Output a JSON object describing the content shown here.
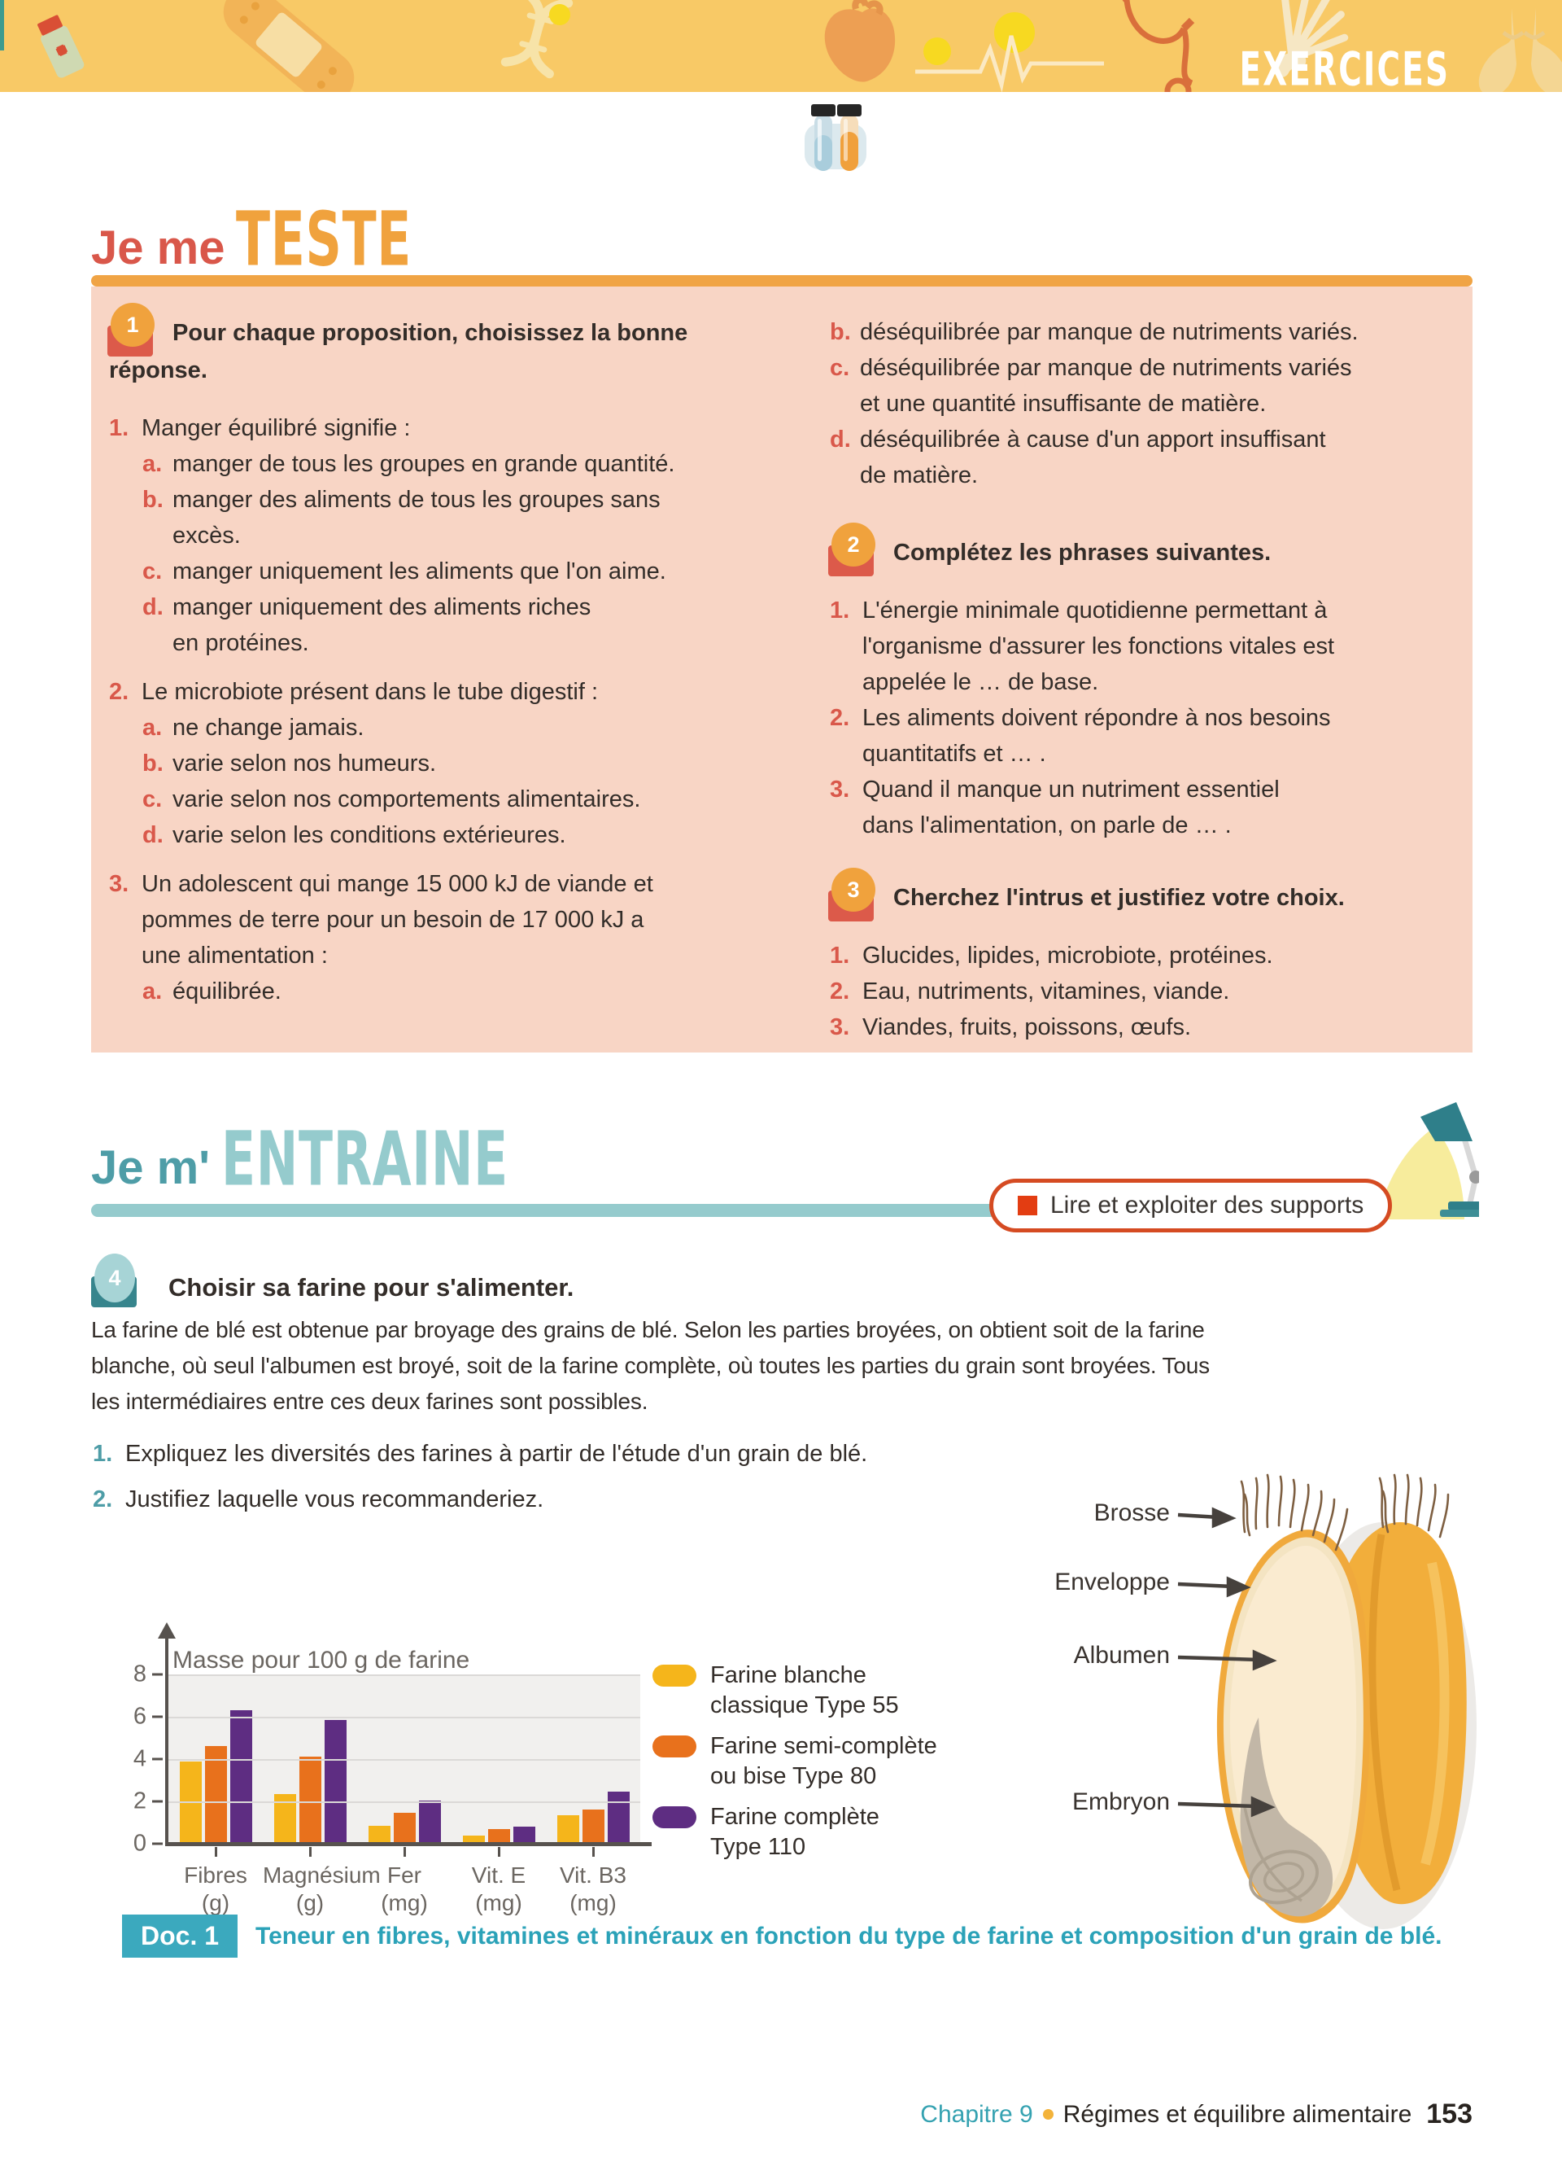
{
  "banner": {
    "title": "EXERCICES"
  },
  "sections": {
    "teste_prefix": "Je me",
    "teste_accent": "TESTE",
    "entraine_prefix": "Je m'",
    "entraine_accent": "ENTRAINE",
    "skill_badge": "Lire et exploiter des supports"
  },
  "quiz": {
    "badge": "1",
    "intro": "Pour chaque proposition, choisissez la bonne\nréponse.",
    "questions": [
      {
        "num": "1.",
        "text": "Manger équilibré signifie :",
        "options": [
          {
            "l": "a.",
            "t": "manger de tous les groupes en grande quantité."
          },
          {
            "l": "b.",
            "t": "manger des aliments de tous les groupes sans\nexcès."
          },
          {
            "l": "c.",
            "t": "manger uniquement les aliments que l'on aime."
          },
          {
            "l": "d.",
            "t": "manger uniquement des aliments riches\nen protéines."
          }
        ]
      },
      {
        "num": "2.",
        "text": "Le microbiote présent dans le tube digestif :",
        "options": [
          {
            "l": "a.",
            "t": "ne change jamais."
          },
          {
            "l": "b.",
            "t": "varie selon nos humeurs."
          },
          {
            "l": "c.",
            "t": "varie selon nos comportements alimentaires."
          },
          {
            "l": "d.",
            "t": "varie selon les conditions extérieures."
          }
        ]
      },
      {
        "num": "3.",
        "text": "Un adolescent qui mange 15 000 kJ de viande et\npommes de terre pour un besoin de 17 000 kJ a\nune alimentation :",
        "options": [
          {
            "l": "a.",
            "t": "équilibrée."
          },
          {
            "l": "b.",
            "t": "déséquilibrée par manque de nutriments variés."
          },
          {
            "l": "c.",
            "t": "déséquilibrée par manque de nutriments variés\net une quantité insuffisante de matière."
          },
          {
            "l": "d.",
            "t": "déséquilibrée à cause d'un apport insuffisant\nde matière."
          }
        ]
      }
    ]
  },
  "complete": {
    "badge": "2",
    "title": "Complétez les phrases suivantes.",
    "items": [
      {
        "num": "1.",
        "t": "L'énergie minimale quotidienne permettant à\nl'organisme d'assurer les fonctions vitales est\nappelée le … de base."
      },
      {
        "num": "2.",
        "t": "Les aliments doivent répondre à nos besoins\nquantitatifs et … ."
      },
      {
        "num": "3.",
        "t": "Quand il manque un nutriment essentiel\ndans l'alimentation, on parle de … ."
      }
    ]
  },
  "intrus": {
    "badge": "3",
    "title": "Cherchez l'intrus et justifiez votre choix.",
    "items": [
      {
        "num": "1.",
        "t": "Glucides, lipides, microbiote, protéines."
      },
      {
        "num": "2.",
        "t": "Eau, nutriments, vitamines, viande."
      },
      {
        "num": "3.",
        "t": "Viandes, fruits, poissons, œufs."
      }
    ]
  },
  "exercise4": {
    "badge": "4",
    "title": "Choisir sa farine pour s'alimenter.",
    "intro": "La farine de blé est obtenue par broyage des grains de blé. Selon les parties broyées, on obtient soit de la farine\nblanche, où seul l'albumen est broyé, soit de la farine complète, où toutes les parties du grain sont broyées. Tous\nles intermédiaires entre ces deux farines sont possibles.",
    "questions": [
      {
        "num": "1.",
        "t": "Expliquez les diversités des farines à partir de l'étude d'un grain de blé."
      },
      {
        "num": "2.",
        "t": "Justifiez laquelle vous recommanderiez."
      }
    ]
  },
  "chart_data": {
    "type": "bar",
    "title": "Masse pour 100 g de farine",
    "categories": [
      "Fibres",
      "Magnésium",
      "Fer",
      "Vit. E",
      "Vit. B3"
    ],
    "category_units": [
      "(g)",
      "(g)",
      "(mg)",
      "(mg)",
      "(mg)"
    ],
    "series": [
      {
        "name": "Farine blanche classique Type 55",
        "label_lines": "Farine blanche\nclassique Type 55",
        "color": "#f5b51b",
        "values": [
          3.9,
          2.35,
          0.85,
          0.4,
          1.35
        ]
      },
      {
        "name": "Farine semi-complète ou bise Type 80",
        "label_lines": "Farine semi-complète\nou bise Type 80",
        "color": "#e8711c",
        "values": [
          4.6,
          4.1,
          1.45,
          0.7,
          1.6
        ]
      },
      {
        "name": "Farine complète Type 110",
        "label_lines": "Farine complète\nType 110",
        "color": "#5e2d82",
        "values": [
          6.3,
          5.85,
          2.05,
          0.8,
          2.45
        ]
      }
    ],
    "ylim": [
      0,
      8
    ],
    "yticks": [
      0,
      2,
      4,
      6,
      8
    ],
    "grid": true,
    "legend_position": "right"
  },
  "diagram": {
    "labels": {
      "brosse": "Brosse",
      "enveloppe": "Enveloppe",
      "albumen": "Albumen",
      "embryon": "Embryon"
    }
  },
  "doc": {
    "tag": "Doc. 1",
    "caption": "Teneur en fibres, vitamines et minéraux en fonction du type de farine et composition d'un grain de blé."
  },
  "footer": {
    "chapter": "Chapitre 9",
    "title": "Régimes et équilibre alimentaire",
    "page": "153"
  }
}
